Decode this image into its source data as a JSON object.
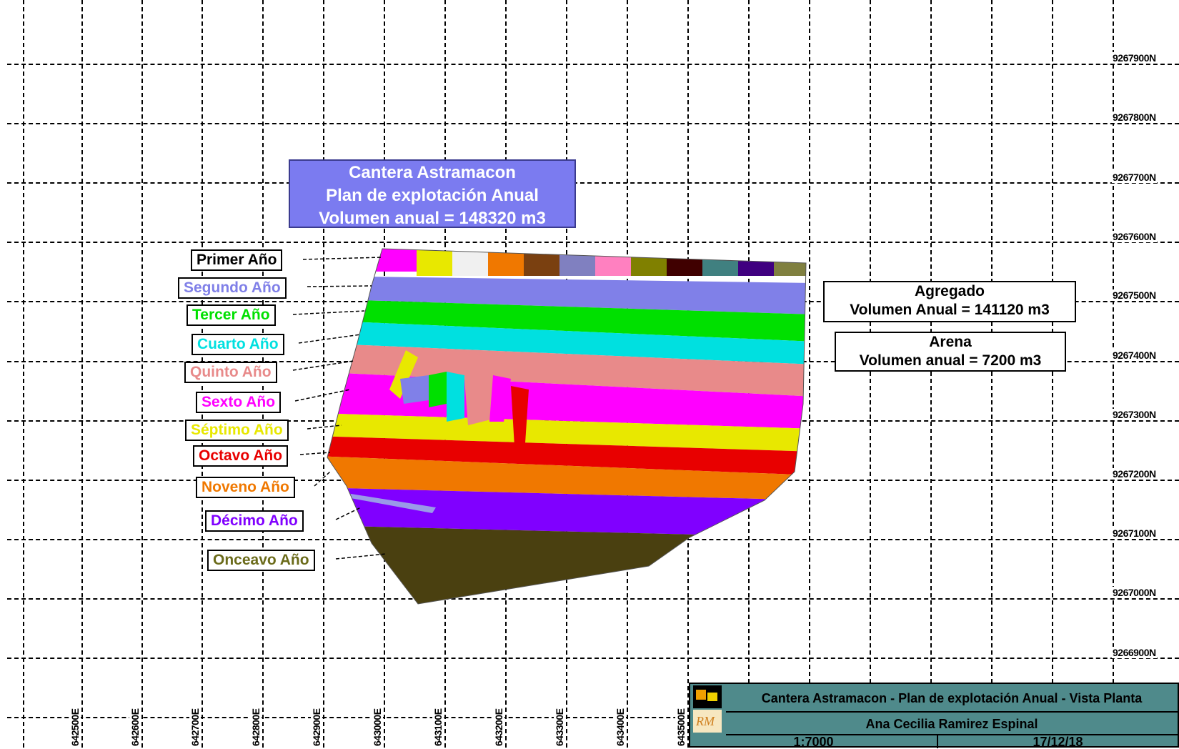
{
  "map": {
    "title_box": {
      "line1": "Cantera Astramacon",
      "line2": "Plan de explotación Anual",
      "line3": "Volumen anual = 148320 m3"
    },
    "northing_labels": [
      "9267900N",
      "9267800N",
      "9267700N",
      "9267600N",
      "9267500N",
      "9267400N",
      "9267300N",
      "9267200N",
      "9267100N",
      "9267000N",
      "9266900N"
    ],
    "easting_labels": [
      "642500E",
      "642600E",
      "642700E",
      "642800E",
      "642900E",
      "643000E",
      "643100E",
      "643200E",
      "643300E",
      "643400E",
      "643500E"
    ],
    "years": [
      {
        "label": "Primer Año",
        "color": "#000000"
      },
      {
        "label": "Segundo Año",
        "color": "#8080e8"
      },
      {
        "label": "Tercer Año",
        "color": "#00e000"
      },
      {
        "label": "Cuarto Año",
        "color": "#00e0e0"
      },
      {
        "label": "Quinto Año",
        "color": "#e88a8a"
      },
      {
        "label": "Sexto Año",
        "color": "#ff00ff"
      },
      {
        "label": "Séptimo Año",
        "color": "#e8e800"
      },
      {
        "label": "Octavo Año",
        "color": "#e80000"
      },
      {
        "label": "Noveno Año",
        "color": "#f07800"
      },
      {
        "label": "Décimo Año",
        "color": "#8000ff"
      },
      {
        "label": "Onceavo Año",
        "color": "#6b6b1a"
      }
    ],
    "agregado": {
      "name": "Agregado",
      "volume": "Volumen Anual = 141120 m3"
    },
    "arena": {
      "name": "Arena",
      "volume": "Volumen anual = 7200 m3"
    }
  },
  "title_block": {
    "title": "Cantera Astramacon - Plan de explotación Anual - Vista Planta",
    "author": "Ana Cecilia Ramirez Espinal",
    "scale": "1:7000",
    "date": "17/12/18"
  },
  "colors": {
    "title_box_bg": "#7b7bf0",
    "title_block_bg": "#4f8a8b"
  }
}
